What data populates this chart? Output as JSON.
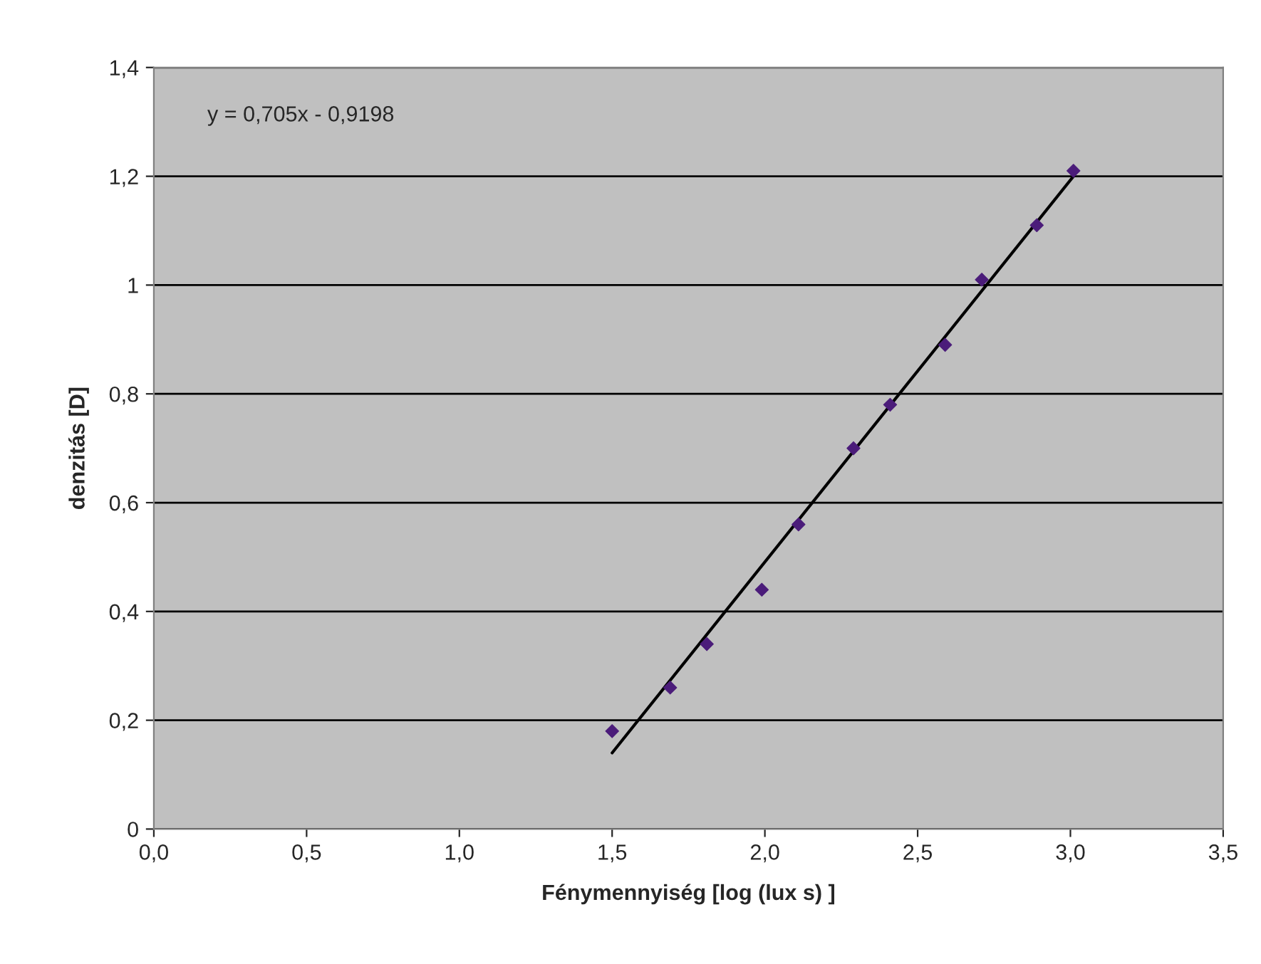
{
  "chart_data": {
    "type": "scatter",
    "xlabel": "Fénymennyiség [log (lux s) ]",
    "ylabel": "denzitás [D]",
    "annotations": [
      "y = 0,705x - 0,9198"
    ],
    "series": [
      {
        "color": "#4b1c7a",
        "marker": "diamond",
        "x": [
          1.5,
          1.69,
          1.81,
          1.99,
          2.11,
          2.29,
          2.41,
          2.59,
          2.71,
          2.89,
          3.01
        ],
        "values": [
          0.18,
          0.26,
          0.34,
          0.44,
          0.56,
          0.7,
          0.78,
          0.89,
          1.01,
          1.11,
          1.21
        ]
      },
      {
        "type": "line",
        "color": "#000000",
        "marker": "none",
        "line_style": "solid",
        "x": [
          1.5,
          3.01
        ],
        "values": [
          0.14,
          1.2
        ]
      }
    ],
    "xlim": [
      0,
      3.5
    ],
    "ylim": [
      0,
      1.4
    ],
    "xticks": [
      {
        "value": 0,
        "label": "0,0"
      },
      {
        "value": 0.5,
        "label": "0,5"
      },
      {
        "value": 1,
        "label": "1,0"
      },
      {
        "value": 1.5,
        "label": "1,5"
      },
      {
        "value": 2,
        "label": "2,0"
      },
      {
        "value": 2.5,
        "label": "2,5"
      },
      {
        "value": 3,
        "label": "3,0"
      },
      {
        "value": 3.5,
        "label": "3,5"
      }
    ],
    "yticks": [
      0,
      {
        "value": 0.2,
        "label": "0,2"
      },
      {
        "value": 0.4,
        "label": "0,4"
      },
      {
        "value": 0.6,
        "label": "0,6"
      },
      {
        "value": 0.8,
        "label": "0,8"
      },
      1,
      {
        "value": 1.2,
        "label": "1,2"
      },
      {
        "value": 1.4,
        "label": "1,4"
      }
    ],
    "grid": "y",
    "legend": false
  }
}
